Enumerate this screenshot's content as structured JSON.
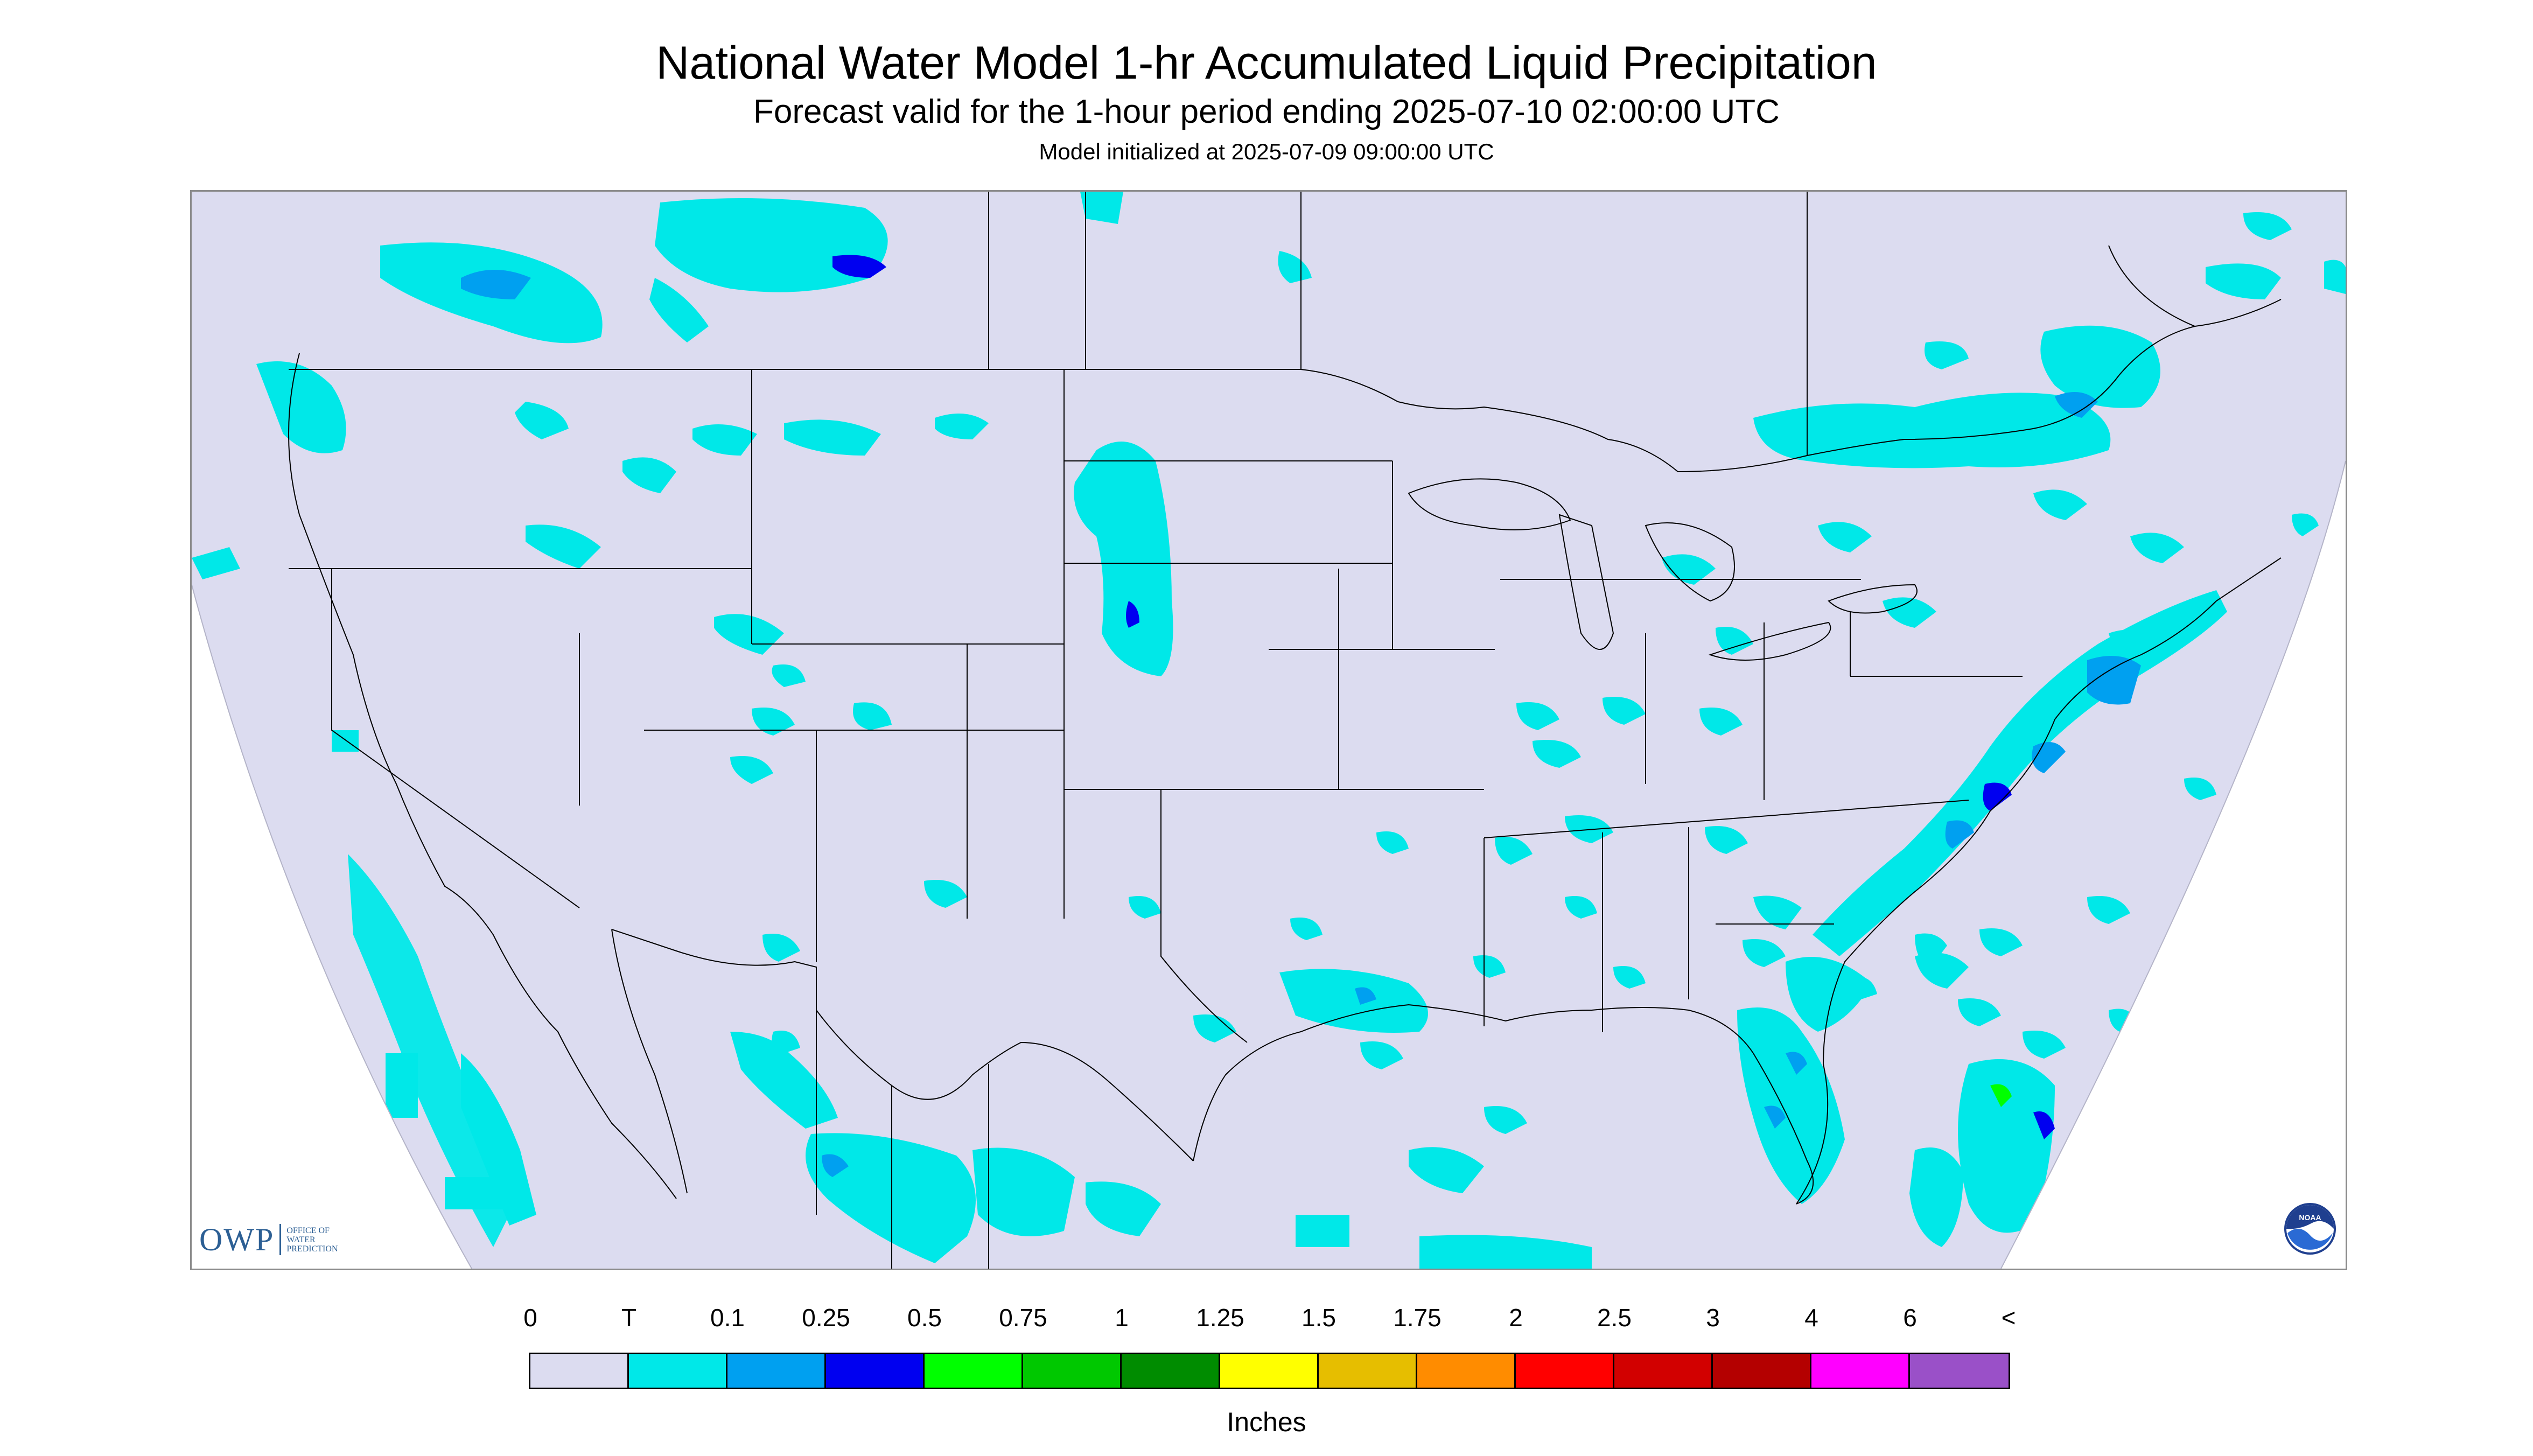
{
  "header": {
    "title": "National Water Model 1-hr Accumulated Liquid Precipitation",
    "subtitle": "Forecast valid for the 1-hour period ending 2025-07-10 02:00:00 UTC",
    "init_line": "Model initialized at 2025-07-09 09:00:00 UTC"
  },
  "map": {
    "domain_fill": "#dcdcf0",
    "outside_fill": "#ffffff",
    "border_color": "#000000"
  },
  "logos": {
    "owp_mark": "OWP",
    "owp_name": "OFFICE OF\nWATER\nPREDICTION",
    "noaa_mark": "NOAA"
  },
  "legend": {
    "ticks": [
      "0",
      "T",
      "0.1",
      "0.25",
      "0.5",
      "0.75",
      "1",
      "1.25",
      "1.5",
      "1.75",
      "2",
      "2.5",
      "3",
      "4",
      "6",
      "<"
    ],
    "colors": [
      "#dcdcf0",
      "#00e8e8",
      "#00a0f0",
      "#0000f0",
      "#00ff00",
      "#00c800",
      "#008c00",
      "#ffff00",
      "#e6be00",
      "#ff8c00",
      "#ff0000",
      "#d20000",
      "#b40000",
      "#ff00ff",
      "#9a50c8"
    ],
    "units": "Inches"
  }
}
